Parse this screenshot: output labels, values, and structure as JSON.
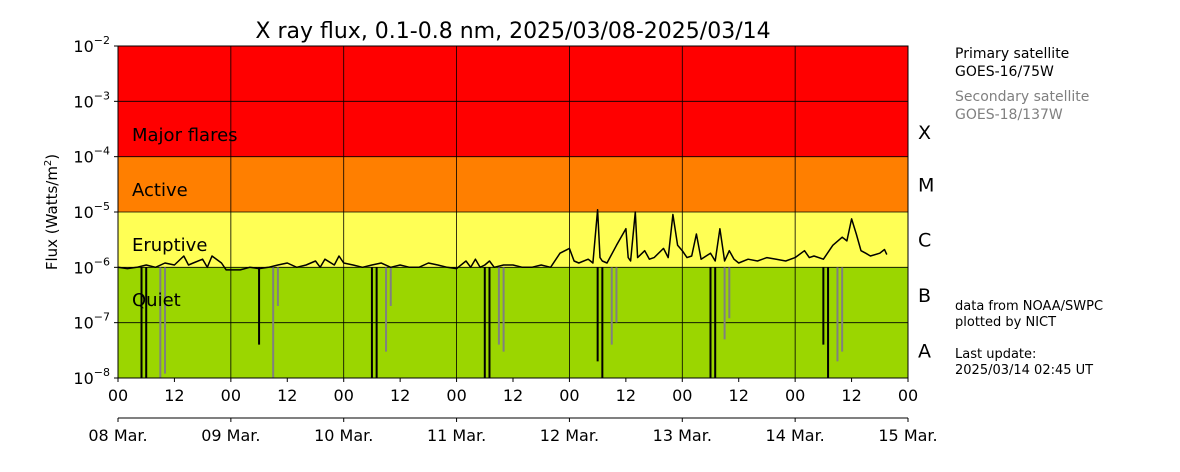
{
  "chart_data": {
    "type": "line",
    "title": "X ray flux, 0.1-0.8 nm, 2025/03/08-2025/03/14",
    "ylabel_main": "Flux (Watts/m",
    "ylabel_sup": "2",
    "ylabel_end": ")",
    "yscale": "log",
    "ylim_exp": [
      -8,
      -2
    ],
    "ytick_base": "10",
    "ytick_exps": [
      "−8",
      "−7",
      "−6",
      "−5",
      "−4",
      "−3",
      "−2"
    ],
    "xlim_hours": [
      0,
      168
    ],
    "xtick_labels": [
      "00",
      "12",
      "00",
      "12",
      "00",
      "12",
      "00",
      "12",
      "00",
      "12",
      "00",
      "12",
      "00",
      "12",
      "00"
    ],
    "date_labels": [
      "08 Mar.",
      "09 Mar.",
      "10 Mar.",
      "11 Mar.",
      "12 Mar.",
      "13 Mar.",
      "14 Mar.",
      "15 Mar."
    ],
    "grid": true,
    "bands": [
      {
        "label": "Major flares",
        "from_exp": -4,
        "to_exp": -2,
        "color": "#ff0000"
      },
      {
        "label": "Active",
        "from_exp": -5,
        "to_exp": -4,
        "color": "#ff7f00"
      },
      {
        "label": "Eruptive",
        "from_exp": -6,
        "to_exp": -5,
        "color": "#ffff55"
      },
      {
        "label": "Quiet",
        "from_exp": -8,
        "to_exp": -6,
        "color": "#9bd600"
      }
    ],
    "classes": [
      {
        "label": "X",
        "center_exp": -3.55
      },
      {
        "label": "M",
        "center_exp": -4.5
      },
      {
        "label": "C",
        "center_exp": -5.5
      },
      {
        "label": "B",
        "center_exp": -6.5
      },
      {
        "label": "A",
        "center_exp": -7.5
      }
    ],
    "series": [
      {
        "color": "#000000",
        "points_hours_flux": [
          [
            0,
            1e-06
          ],
          [
            2,
            9.5e-07
          ],
          [
            4,
            1e-06
          ],
          [
            6,
            1.1e-06
          ],
          [
            8,
            1e-06
          ],
          [
            10,
            1.2e-06
          ],
          [
            12,
            1.1e-06
          ],
          [
            14,
            1.6e-06
          ],
          [
            15,
            1.1e-06
          ],
          [
            16,
            1.2e-06
          ],
          [
            18,
            1.4e-06
          ],
          [
            19,
            1e-06
          ],
          [
            20,
            1.6e-06
          ],
          [
            22,
            1.2e-06
          ],
          [
            23,
            9e-07
          ],
          [
            26,
            9e-07
          ],
          [
            28,
            1e-06
          ],
          [
            30,
            9.5e-07
          ],
          [
            32,
            1e-06
          ],
          [
            34,
            1.1e-06
          ],
          [
            36,
            1.2e-06
          ],
          [
            38,
            1e-06
          ],
          [
            40,
            1.1e-06
          ],
          [
            42,
            1.3e-06
          ],
          [
            43,
            1e-06
          ],
          [
            44,
            1.4e-06
          ],
          [
            46,
            1.1e-06
          ],
          [
            47,
            1.6e-06
          ],
          [
            48,
            1.2e-06
          ],
          [
            50,
            1.1e-06
          ],
          [
            52,
            1e-06
          ],
          [
            54,
            1.1e-06
          ],
          [
            56,
            1.2e-06
          ],
          [
            58,
            1e-06
          ],
          [
            60,
            1.1e-06
          ],
          [
            62,
            1e-06
          ],
          [
            64,
            1e-06
          ],
          [
            66,
            1.2e-06
          ],
          [
            68,
            1.1e-06
          ],
          [
            70,
            1e-06
          ],
          [
            72,
            9.5e-07
          ],
          [
            74,
            1.3e-06
          ],
          [
            75,
            1e-06
          ],
          [
            76,
            1.4e-06
          ],
          [
            77,
            1e-06
          ],
          [
            78,
            1.1e-06
          ],
          [
            79,
            1.3e-06
          ],
          [
            80,
            1e-06
          ],
          [
            82,
            1.1e-06
          ],
          [
            84,
            1.1e-06
          ],
          [
            86,
            1e-06
          ],
          [
            88,
            1e-06
          ],
          [
            90,
            1.1e-06
          ],
          [
            92,
            1e-06
          ],
          [
            94,
            1.8e-06
          ],
          [
            96,
            2.2e-06
          ],
          [
            97,
            1.3e-06
          ],
          [
            98,
            1.2e-06
          ],
          [
            100,
            1.4e-06
          ],
          [
            101,
            1.2e-06
          ],
          [
            102,
            1.1e-05
          ],
          [
            102.5,
            1.5e-06
          ],
          [
            103,
            1.3e-06
          ],
          [
            104,
            1.2e-06
          ],
          [
            106,
            2.5e-06
          ],
          [
            108,
            5e-06
          ],
          [
            108.5,
            1.5e-06
          ],
          [
            109,
            1.3e-06
          ],
          [
            110,
            1e-05
          ],
          [
            110.5,
            1.5e-06
          ],
          [
            112,
            2e-06
          ],
          [
            113,
            1.4e-06
          ],
          [
            114,
            1.5e-06
          ],
          [
            116,
            2.2e-06
          ],
          [
            117,
            1.5e-06
          ],
          [
            118,
            9e-06
          ],
          [
            119,
            2.5e-06
          ],
          [
            120,
            2e-06
          ],
          [
            121,
            1.5e-06
          ],
          [
            122,
            1.6e-06
          ],
          [
            123,
            4e-06
          ],
          [
            124,
            1.4e-06
          ],
          [
            126,
            1.8e-06
          ],
          [
            127,
            1.3e-06
          ],
          [
            128,
            5e-06
          ],
          [
            129,
            1.3e-06
          ],
          [
            130,
            2e-06
          ],
          [
            131,
            1.4e-06
          ],
          [
            132,
            1.2e-06
          ],
          [
            134,
            1.4e-06
          ],
          [
            136,
            1.3e-06
          ],
          [
            138,
            1.5e-06
          ],
          [
            140,
            1.4e-06
          ],
          [
            142,
            1.3e-06
          ],
          [
            144,
            1.5e-06
          ],
          [
            146,
            2e-06
          ],
          [
            147,
            1.5e-06
          ],
          [
            148,
            1.6e-06
          ],
          [
            150,
            1.4e-06
          ],
          [
            152,
            2.5e-06
          ],
          [
            154,
            3.5e-06
          ],
          [
            155,
            3e-06
          ],
          [
            156,
            7.5e-06
          ],
          [
            157,
            4e-06
          ],
          [
            158,
            2e-06
          ],
          [
            159,
            1.8e-06
          ],
          [
            160,
            1.6e-06
          ],
          [
            162,
            1.8e-06
          ],
          [
            163,
            2.1e-06
          ],
          [
            163.5,
            1.7e-06
          ]
        ],
        "dropouts_hours_flux": [
          [
            5,
            1e-08
          ],
          [
            6,
            1e-08
          ],
          [
            30,
            4e-08
          ],
          [
            54,
            1e-08
          ],
          [
            55,
            1e-08
          ],
          [
            78,
            1e-08
          ],
          [
            79,
            1e-08
          ],
          [
            102,
            2e-08
          ],
          [
            103,
            1e-08
          ],
          [
            126,
            1e-08
          ],
          [
            127,
            1e-08
          ],
          [
            150,
            4e-08
          ],
          [
            151,
            1e-08
          ]
        ]
      },
      {
        "color": "#808080",
        "dropouts_hours_flux": [
          [
            9,
            1e-08
          ],
          [
            10,
            1.2e-08
          ],
          [
            33,
            1e-08
          ],
          [
            34,
            2e-07
          ],
          [
            57,
            3e-08
          ],
          [
            58,
            2e-07
          ],
          [
            81,
            4e-08
          ],
          [
            82,
            3e-08
          ],
          [
            105,
            4e-08
          ],
          [
            106,
            1e-07
          ],
          [
            129,
            5e-08
          ],
          [
            130,
            1.2e-07
          ],
          [
            153,
            2e-08
          ],
          [
            154,
            3e-08
          ]
        ]
      }
    ]
  },
  "legend": {
    "primary_title": "Primary satellite",
    "primary_sat": "GOES-16/75W",
    "secondary_title": "Secondary satellite",
    "secondary_sat": "GOES-18/137W"
  },
  "credits": {
    "line1": "data from NOAA/SWPC",
    "line2": "plotted by NICT",
    "update_label": "Last update:",
    "update_time": "2025/03/14 02:45 UT"
  }
}
